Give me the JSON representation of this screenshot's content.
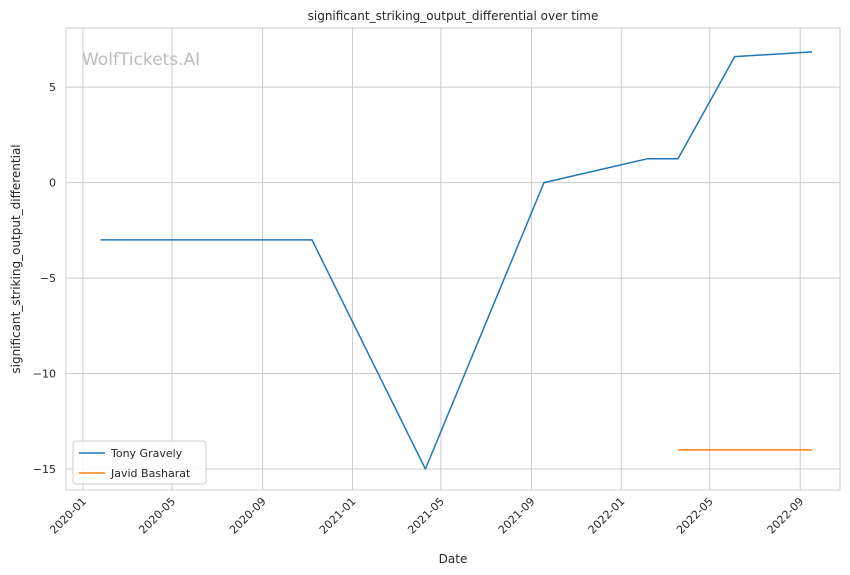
{
  "watermark": "WolfTickets.AI",
  "chart_data": {
    "type": "line",
    "title": "significant_striking_output_differential over time",
    "xlabel": "Date",
    "ylabel": "significant_striking_output_differential",
    "x_ticks": [
      "2020-01",
      "2020-05",
      "2020-09",
      "2021-01",
      "2021-05",
      "2021-09",
      "2022-01",
      "2022-05",
      "2022-09"
    ],
    "y_ticks": [
      5,
      0,
      -5,
      -10,
      -15
    ],
    "y_tick_labels": [
      "5",
      "0",
      "−5",
      "−10",
      "−15"
    ],
    "xlim": [
      "2019-12-09",
      "2022-10-25"
    ],
    "ylim": [
      -16.1,
      8.1
    ],
    "grid": true,
    "legend_position": "lower-left",
    "series": [
      {
        "name": "Tony Gravely",
        "color": "#1f77b4",
        "points": [
          {
            "x": "2020-01-25",
            "y": -3.0
          },
          {
            "x": "2020-11-07",
            "y": -3.0
          },
          {
            "x": "2021-04-10",
            "y": -15.0
          },
          {
            "x": "2021-09-18",
            "y": 0.0
          },
          {
            "x": "2022-02-05",
            "y": 1.25
          },
          {
            "x": "2022-03-19",
            "y": 1.25
          },
          {
            "x": "2022-06-04",
            "y": 6.6
          },
          {
            "x": "2022-09-17",
            "y": 6.85
          }
        ]
      },
      {
        "name": "Javid Basharat",
        "color": "#ff7f0e",
        "points": [
          {
            "x": "2022-03-19",
            "y": -14.0
          },
          {
            "x": "2022-09-17",
            "y": -14.0
          }
        ]
      }
    ]
  }
}
